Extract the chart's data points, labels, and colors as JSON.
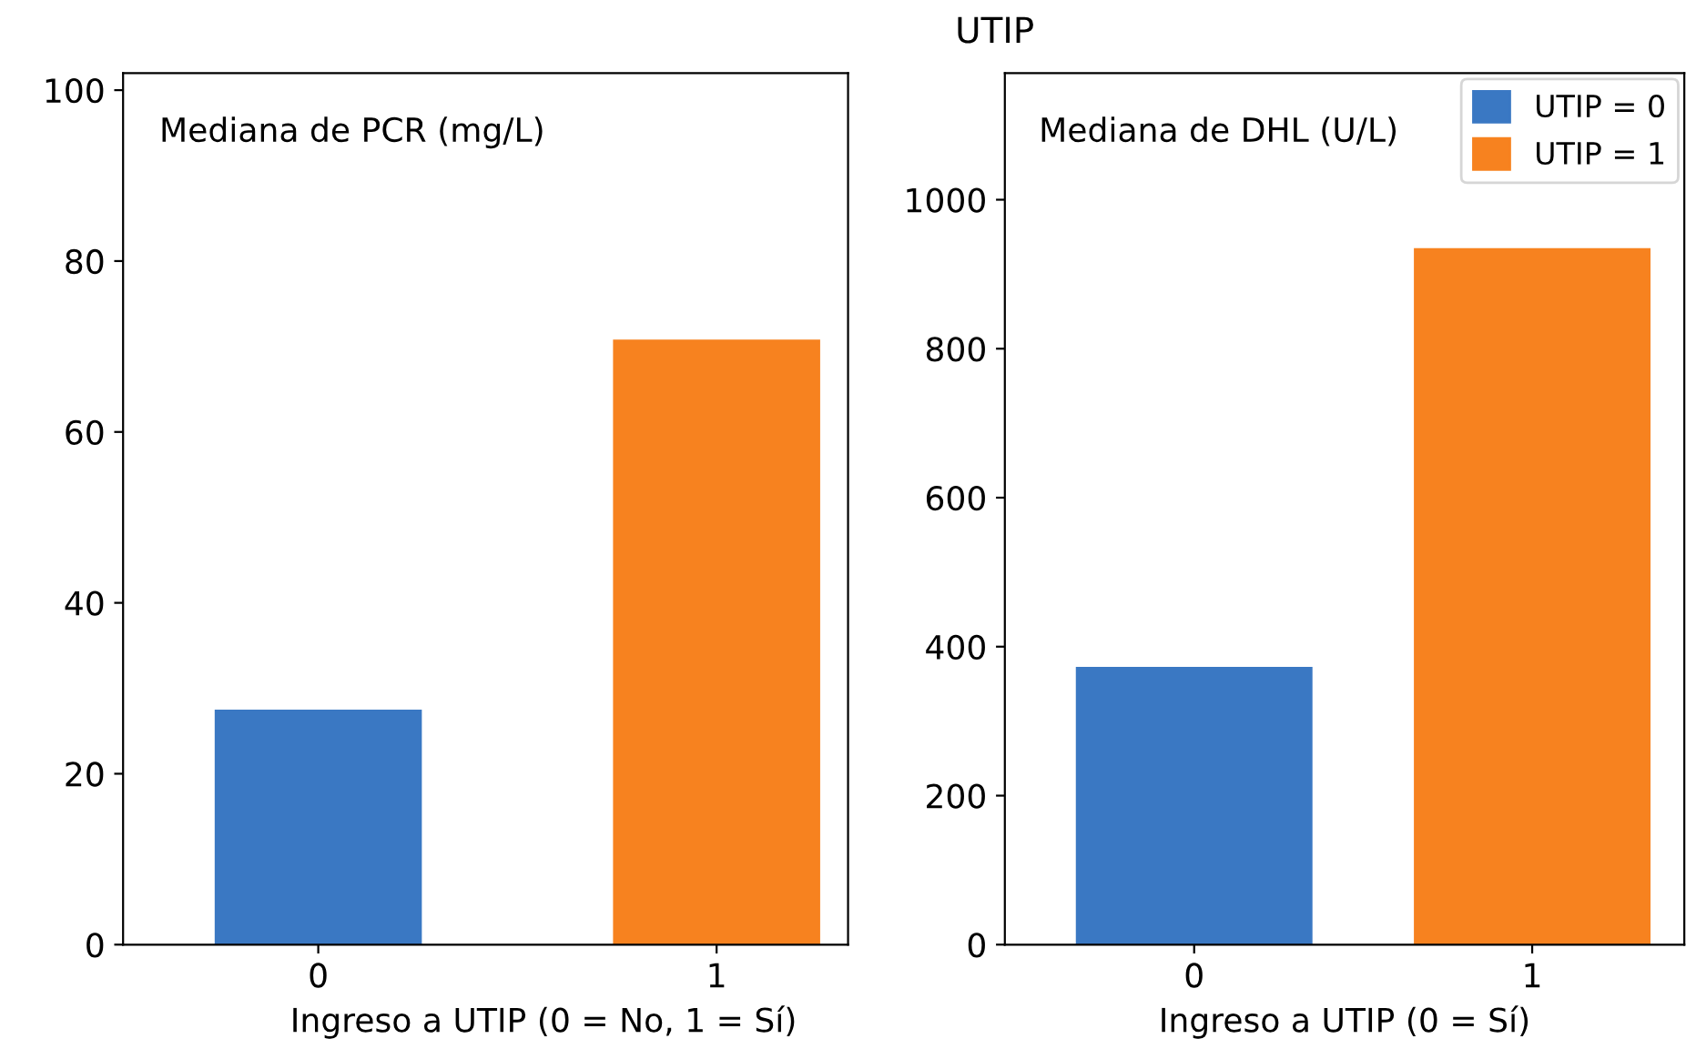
{
  "chart_data": [
    {
      "type": "bar",
      "title": "Mediana de PCR (mg/L)",
      "xlabel": "Ingreso a UTIP (0 = No, 1 = Sí)",
      "annotations": [
        "UTIP"
      ],
      "categories": [
        "0",
        "1"
      ],
      "series": [
        {
          "color": "#3a78c3",
          "values": [
            27.5,
            null
          ]
        },
        {
          "color": "#f7821f",
          "values": [
            null,
            70.8
          ]
        }
      ],
      "ylim": [
        0,
        102
      ],
      "yticks": [
        0,
        20,
        40,
        60,
        80,
        100
      ],
      "grid": false,
      "legend": false
    },
    {
      "type": "bar",
      "title": "Mediana de DHL (U/L)",
      "xlabel": "Ingreso a UTIP (0 = Sí)",
      "categories": [
        "0",
        "1"
      ],
      "series": [
        {
          "name": "UTIP = 0",
          "color": "#3a78c3",
          "values": [
            373,
            null
          ]
        },
        {
          "name": "UTIP = 1",
          "color": "#f7821f",
          "values": [
            null,
            935
          ]
        }
      ],
      "ylim": [
        0,
        1170
      ],
      "yticks": [
        0,
        200,
        400,
        600,
        800,
        1000
      ],
      "grid": false,
      "legend": "top right"
    }
  ]
}
